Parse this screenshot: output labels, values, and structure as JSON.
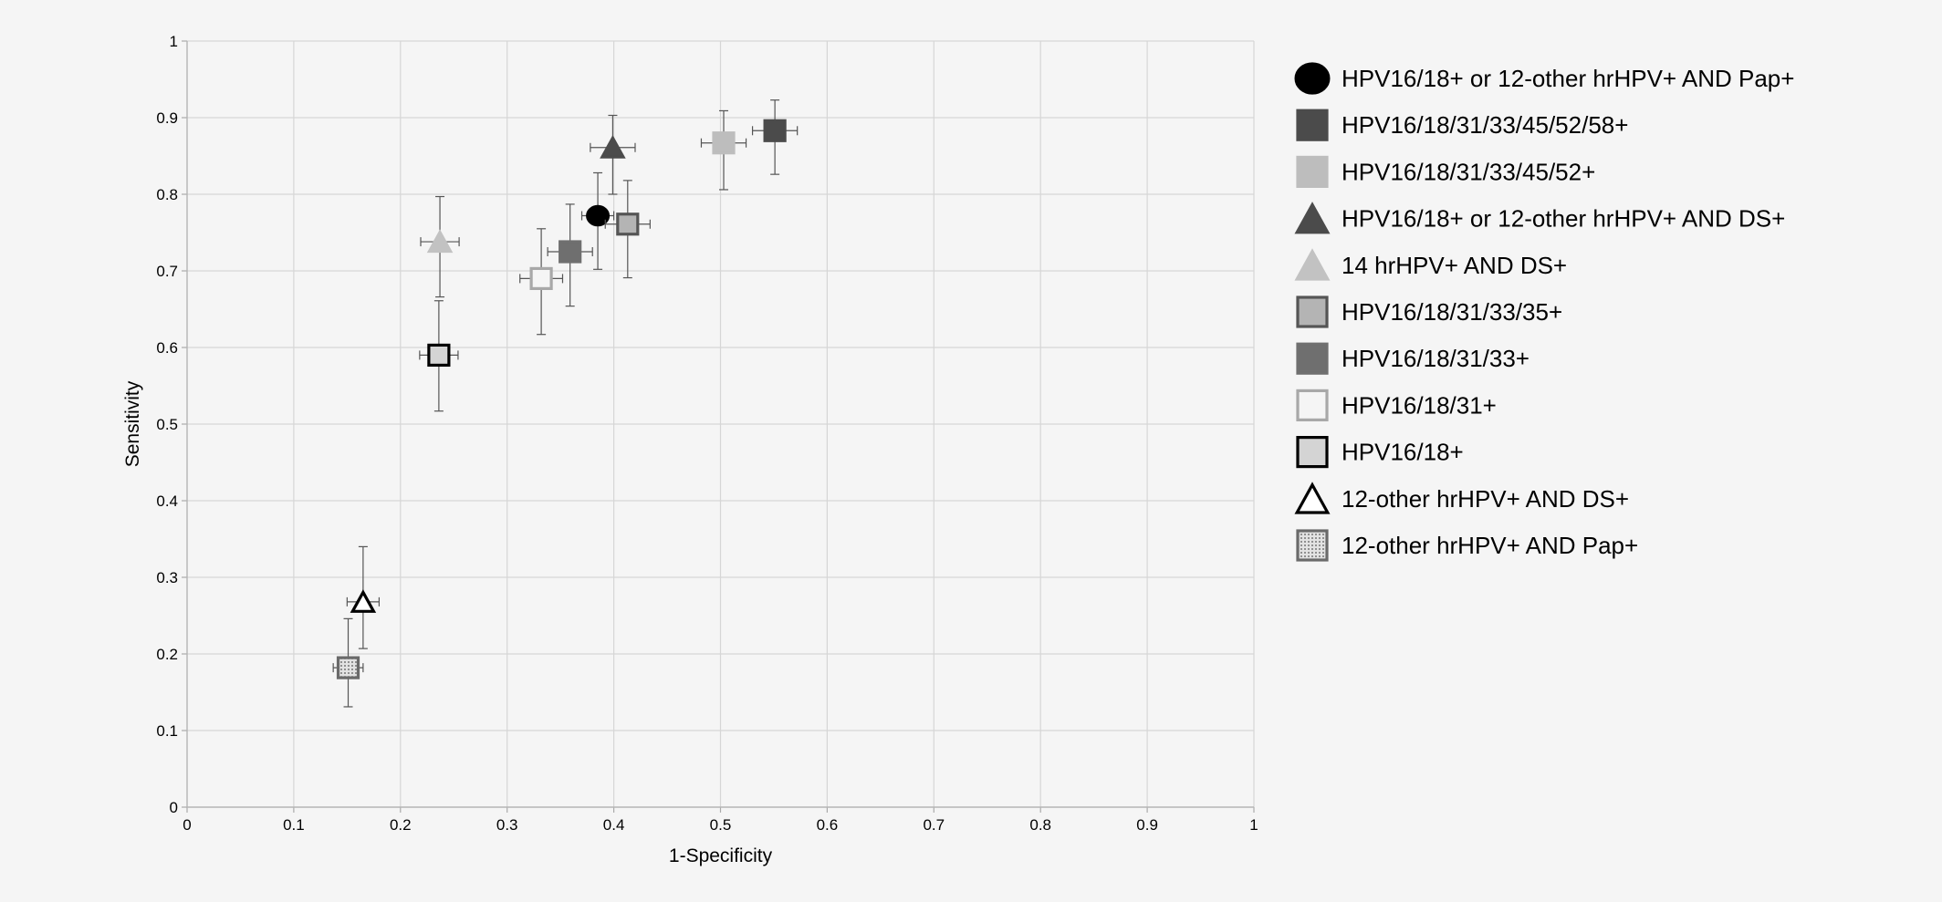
{
  "chart_data": {
    "type": "scatter",
    "xlabel": "1-Specificity",
    "ylabel": "Sensitivity",
    "xlim": [
      0,
      1
    ],
    "ylim": [
      0,
      1
    ],
    "x_ticks": [
      "0",
      "0.1",
      "0.2",
      "0.3",
      "0.4",
      "0.5",
      "0.6",
      "0.7",
      "0.8",
      "0.9",
      "1"
    ],
    "y_ticks": [
      "0",
      "0.1",
      "0.2",
      "0.3",
      "0.4",
      "0.5",
      "0.6",
      "0.7",
      "0.8",
      "0.9",
      "1"
    ],
    "grid": true,
    "error_bars": true,
    "legend_position": "right",
    "series": [
      {
        "name": "HPV16/18+ or 12-other hrHPV+ AND Pap+",
        "marker": "circle",
        "fill": "#000000",
        "stroke": "#000000",
        "x": 0.385,
        "y": 0.772,
        "x_err": [
          0.37,
          0.4
        ],
        "y_err": [
          0.702,
          0.828
        ]
      },
      {
        "name": "HPV16/18/31/33/45/52/58+",
        "marker": "square",
        "fill": "#4b4b4b",
        "stroke": "#4b4b4b",
        "x": 0.551,
        "y": 0.883,
        "x_err": [
          0.53,
          0.572
        ],
        "y_err": [
          0.826,
          0.923
        ]
      },
      {
        "name": "HPV16/18/31/33/45/52+",
        "marker": "square",
        "fill": "#bdbdbd",
        "stroke": "#bdbdbd",
        "x": 0.503,
        "y": 0.867,
        "x_err": [
          0.482,
          0.524
        ],
        "y_err": [
          0.806,
          0.909
        ]
      },
      {
        "name": "HPV16/18+ or 12-other hrHPV+ AND DS+",
        "marker": "triangle",
        "fill": "#4b4b4b",
        "stroke": "#4b4b4b",
        "x": 0.399,
        "y": 0.861,
        "x_err": [
          0.378,
          0.42
        ],
        "y_err": [
          0.8,
          0.903
        ]
      },
      {
        "name": "14 hrHPV+ AND DS+",
        "marker": "triangle",
        "fill": "#c2c2c2",
        "stroke": "#c2c2c2",
        "x": 0.237,
        "y": 0.738,
        "x_err": [
          0.219,
          0.255
        ],
        "y_err": [
          0.666,
          0.797
        ]
      },
      {
        "name": "HPV16/18/31/33/35+",
        "marker": "square",
        "fill": "#b4b4b4",
        "stroke": "#555555",
        "x": 0.413,
        "y": 0.761,
        "x_err": [
          0.392,
          0.434
        ],
        "y_err": [
          0.691,
          0.818
        ]
      },
      {
        "name": "HPV16/18/31/33+",
        "marker": "square",
        "fill": "#6f6f6f",
        "stroke": "#6f6f6f",
        "x": 0.359,
        "y": 0.725,
        "x_err": [
          0.338,
          0.38
        ],
        "y_err": [
          0.654,
          0.787
        ]
      },
      {
        "name": "HPV16/18/31+",
        "marker": "square",
        "fill": "#f5f5f5",
        "stroke": "#a8a8a8",
        "x": 0.332,
        "y": 0.69,
        "x_err": [
          0.312,
          0.352
        ],
        "y_err": [
          0.617,
          0.755
        ]
      },
      {
        "name": "HPV16/18+",
        "marker": "square",
        "fill": "#d4d4d4",
        "stroke": "#000000",
        "x": 0.236,
        "y": 0.59,
        "x_err": [
          0.218,
          0.254
        ],
        "y_err": [
          0.517,
          0.661
        ]
      },
      {
        "name": "12-other hrHPV+ AND DS+",
        "marker": "triangle",
        "fill": "#ffffff",
        "stroke": "#000000",
        "x": 0.165,
        "y": 0.268,
        "x_err": [
          0.15,
          0.18
        ],
        "y_err": [
          0.207,
          0.34
        ]
      },
      {
        "name": "12-other hrHPV+ AND Pap+",
        "marker": "square-dotted",
        "fill": "#9a9a9a",
        "stroke": "#6a6a6a",
        "x": 0.151,
        "y": 0.182,
        "x_err": [
          0.137,
          0.165
        ],
        "y_err": [
          0.131,
          0.246
        ]
      }
    ]
  }
}
